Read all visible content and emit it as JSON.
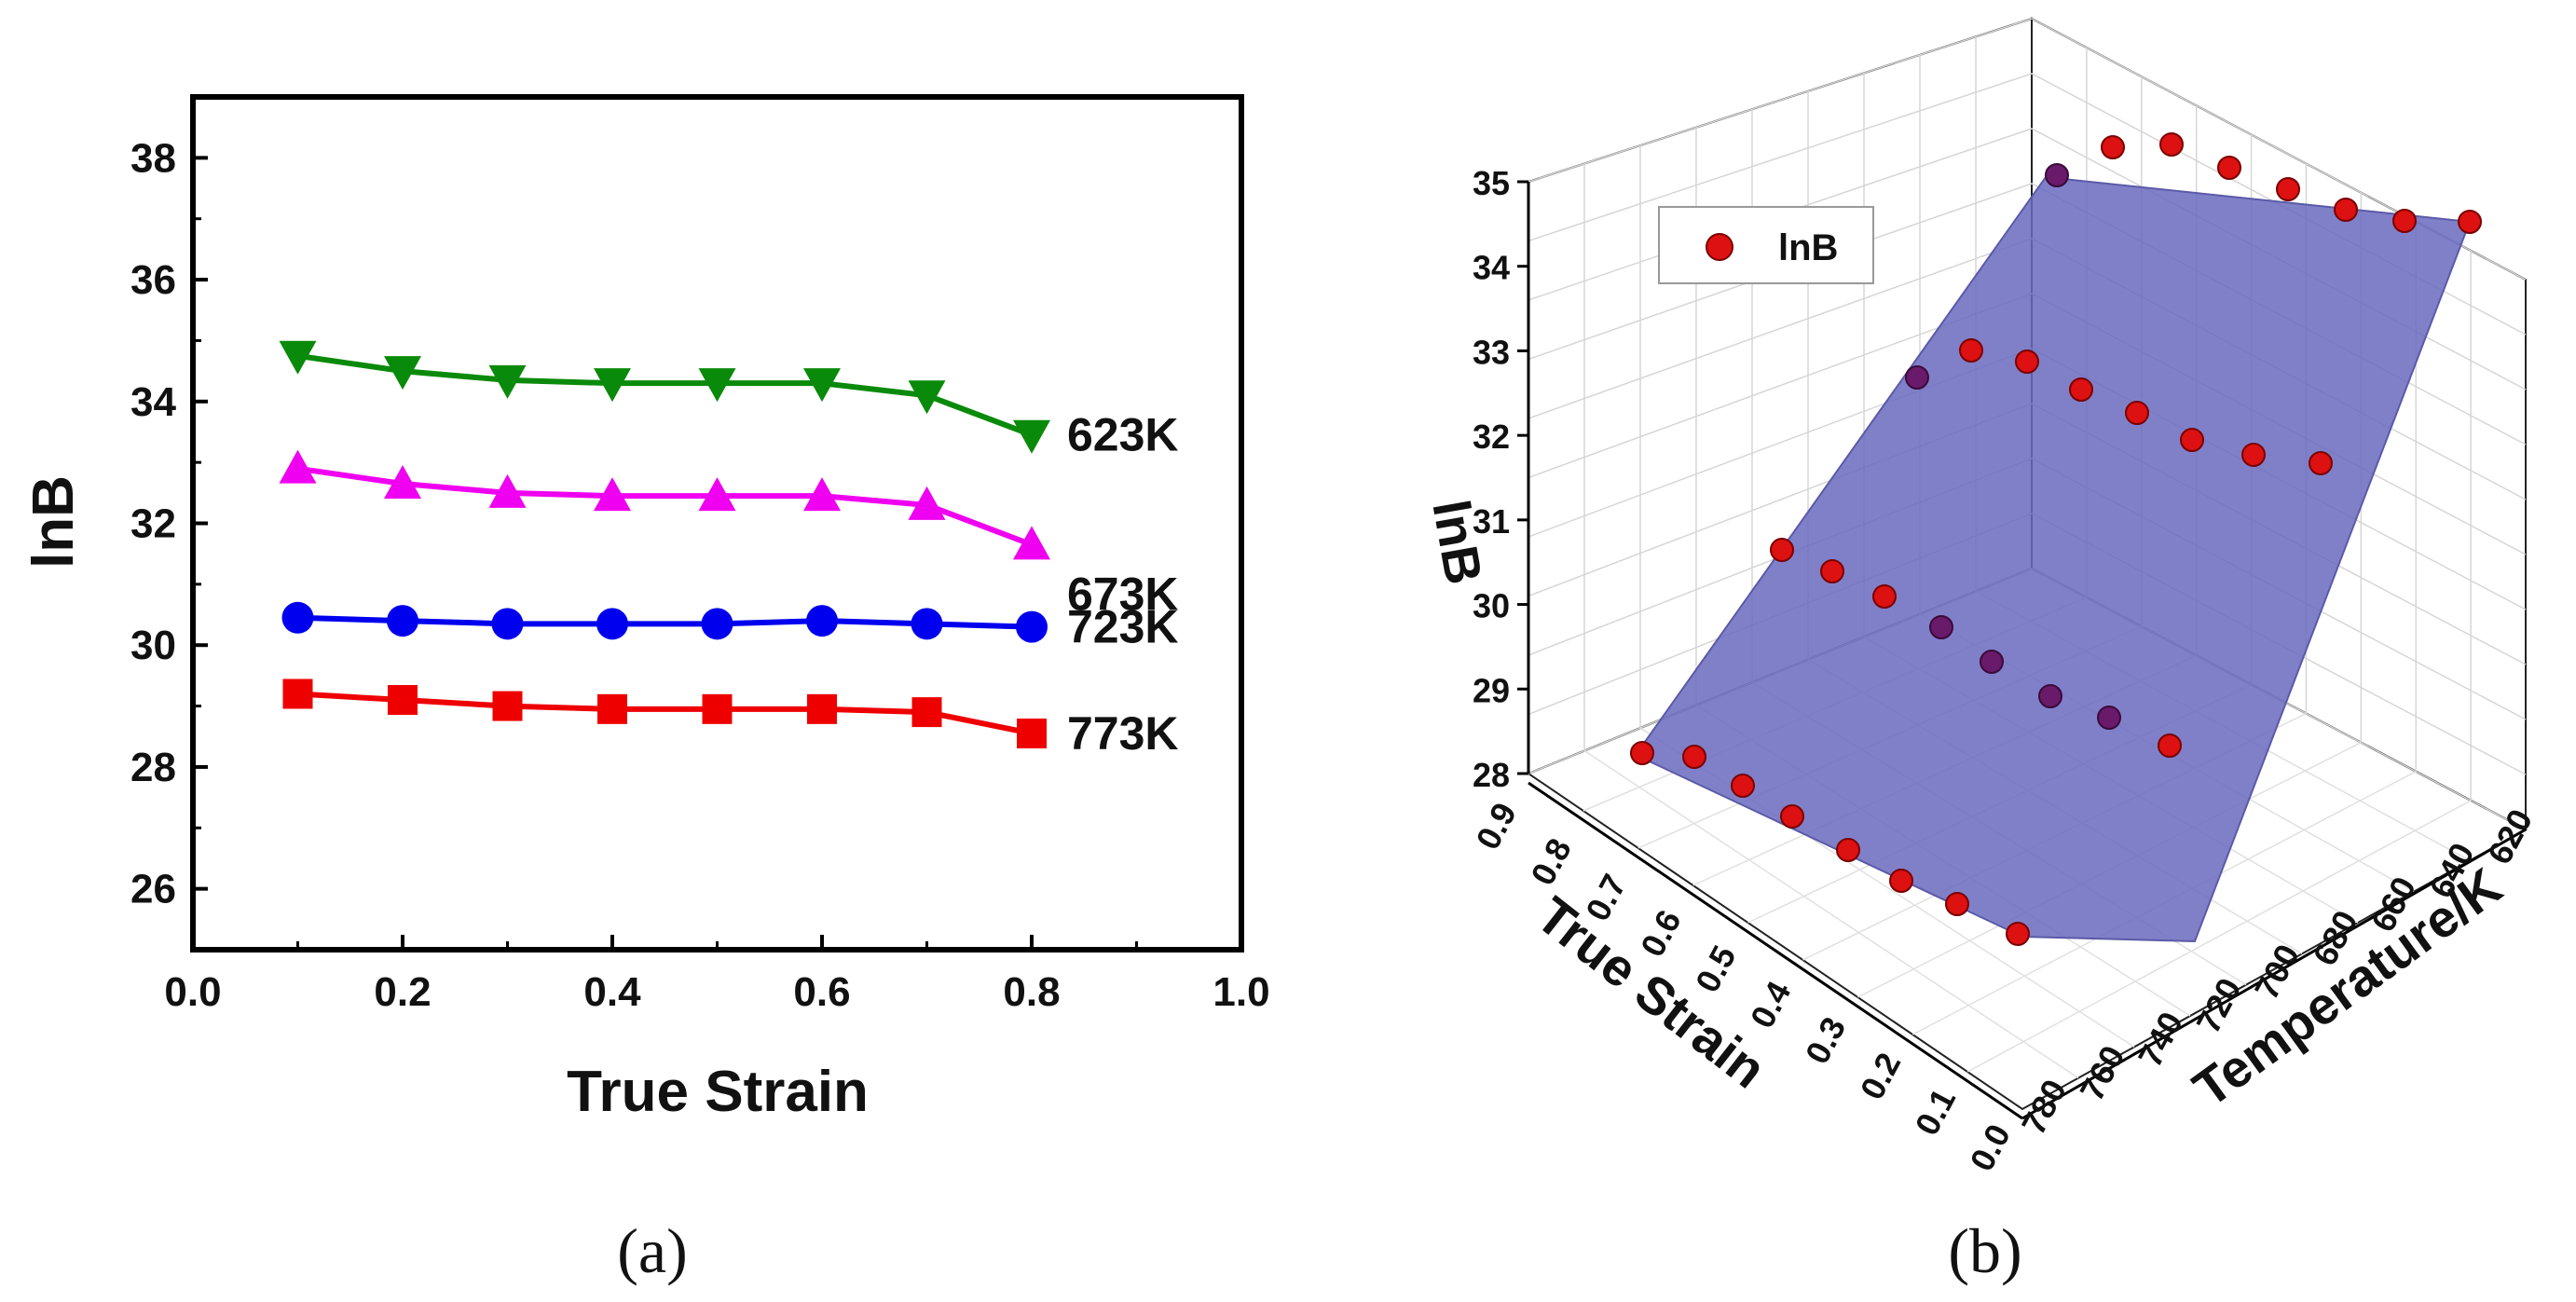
{
  "chart_data": [
    {
      "type": "line",
      "panel": "(a)",
      "title": "",
      "xlabel": "True Strain",
      "ylabel": "lnB",
      "xlim": [
        0.0,
        1.0
      ],
      "ylim": [
        25.0,
        39.0
      ],
      "xticks": [
        "0.0",
        "0.2",
        "0.4",
        "0.6",
        "0.8",
        "1.0"
      ],
      "yticks": [
        "26",
        "28",
        "30",
        "32",
        "34",
        "36",
        "38"
      ],
      "x": [
        0.1,
        0.2,
        0.3,
        0.4,
        0.5,
        0.6,
        0.7,
        0.8
      ],
      "series": [
        {
          "name": "623K",
          "marker": "triangle-down",
          "color": "#0a8a0a",
          "values": [
            34.75,
            34.5,
            34.35,
            34.3,
            34.3,
            34.3,
            34.1,
            33.45
          ]
        },
        {
          "name": "673K",
          "marker": "triangle-up",
          "color": "#f000f0",
          "values": [
            32.9,
            32.65,
            32.5,
            32.45,
            32.45,
            32.45,
            32.3,
            31.65
          ]
        },
        {
          "name": "723K",
          "marker": "circle",
          "color": "#0000ee",
          "values": [
            30.45,
            30.4,
            30.35,
            30.35,
            30.35,
            30.4,
            30.35,
            30.3
          ]
        },
        {
          "name": "773K",
          "marker": "square",
          "color": "#ee0000",
          "values": [
            29.2,
            29.1,
            29.0,
            28.95,
            28.95,
            28.95,
            28.9,
            28.55
          ]
        }
      ]
    },
    {
      "type": "scatter3d",
      "panel": "(b)",
      "title": "",
      "xlabel": "True Strain",
      "ylabel": "Temperature/K",
      "zlabel": "lnB",
      "strain_ticks": [
        "0.0",
        "0.1",
        "0.2",
        "0.3",
        "0.4",
        "0.5",
        "0.6",
        "0.7",
        "0.8",
        "0.9"
      ],
      "temperature_ticks": [
        "620",
        "640",
        "660",
        "680",
        "700",
        "720",
        "740",
        "760",
        "780"
      ],
      "z_ticks": [
        "28",
        "29",
        "30",
        "31",
        "32",
        "33",
        "34",
        "35"
      ],
      "legend": [
        "lnB"
      ],
      "temperatures": [
        623,
        673,
        723,
        773
      ],
      "strains": [
        0.1,
        0.2,
        0.3,
        0.4,
        0.5,
        0.6,
        0.7,
        0.8
      ],
      "series": [
        {
          "name": "lnB",
          "color": "#dd1111",
          "surface_color": "#6a6abf"
        }
      ]
    }
  ]
}
